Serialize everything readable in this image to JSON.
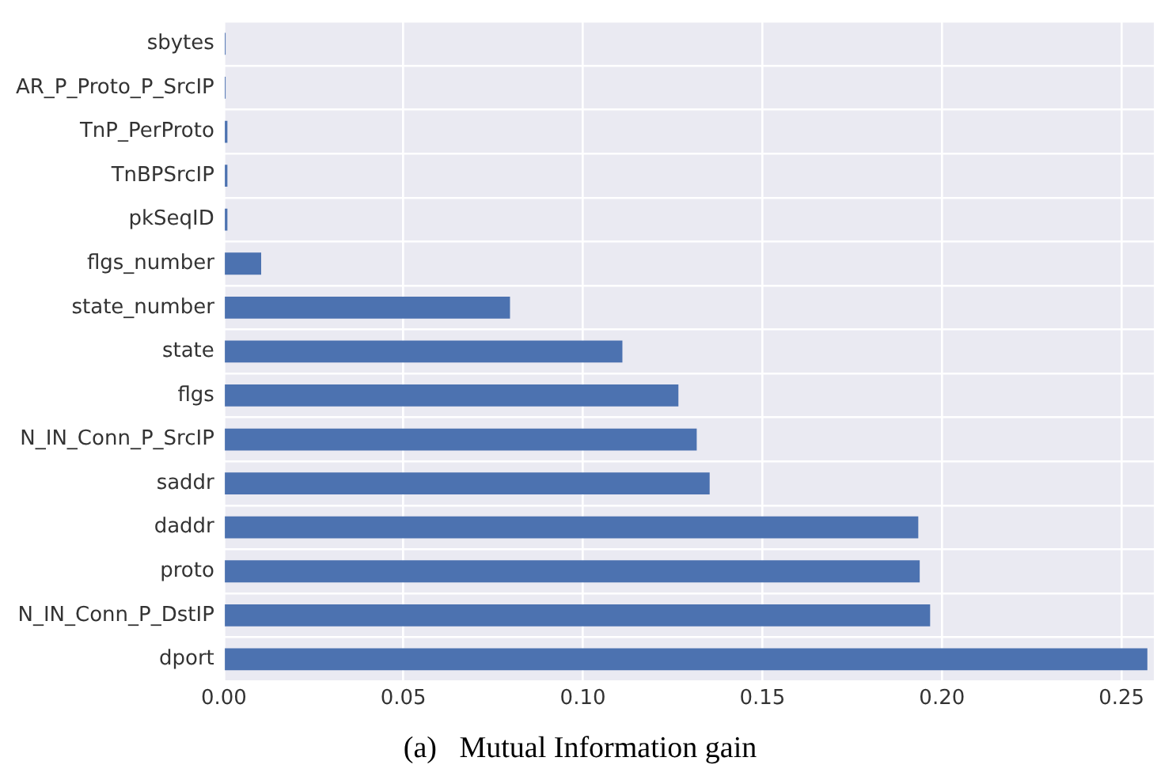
{
  "chart_data": {
    "type": "bar",
    "orientation": "horizontal",
    "title": "(a)   Mutual Information gain",
    "categories": [
      "sbytes",
      "AR_P_Proto_P_SrcIP",
      "TnP_PerProto",
      "TnBPSrcIP",
      "pkSeqID",
      "flgs_number",
      "state_number",
      "state",
      "flgs",
      "N_IN_Conn_P_SrcIP",
      "saddr",
      "daddr",
      "proto",
      "N_IN_Conn_P_DstIP",
      "dport"
    ],
    "values": [
      0.0005,
      0.0005,
      0.001,
      0.001,
      0.001,
      0.0104,
      0.0797,
      0.111,
      0.1266,
      0.1317,
      0.1353,
      0.1934,
      0.1938,
      0.1967,
      0.2572
    ],
    "color": "#4c72b0",
    "xlim": [
      0,
      0.259
    ],
    "xticks": [
      {
        "value": 0,
        "label": "0.00"
      },
      {
        "value": 0.05,
        "label": "0.05"
      },
      {
        "value": 0.1,
        "label": "0.10"
      },
      {
        "value": 0.15,
        "label": "0.15"
      },
      {
        "value": 0.2,
        "label": "0.20"
      },
      {
        "value": 0.25,
        "label": "0.25"
      }
    ],
    "grid": true,
    "legend": false
  }
}
